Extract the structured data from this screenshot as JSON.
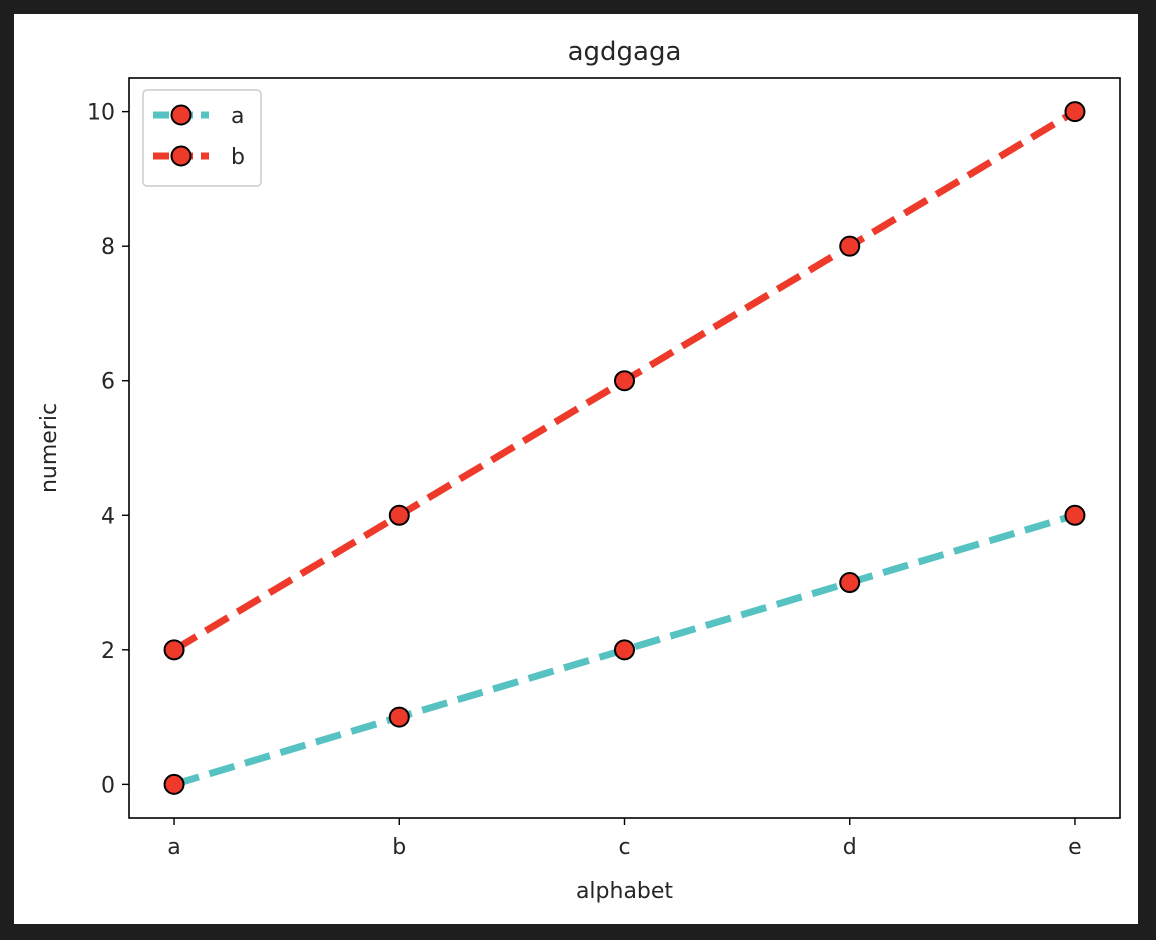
{
  "chart_data": {
    "type": "line",
    "title": "agdgaga",
    "xlabel": "alphabet",
    "ylabel": "numeric",
    "categories": [
      "a",
      "b",
      "c",
      "d",
      "e"
    ],
    "ylim": [
      -0.5,
      10.5
    ],
    "yticks": [
      0,
      2,
      4,
      6,
      8,
      10
    ],
    "grid": false,
    "legend_position": "top-left",
    "marker_face_color": "#ee3a2b",
    "marker_edge_color": "#000000",
    "series": [
      {
        "name": "a",
        "values": [
          0,
          1,
          2,
          3,
          4
        ],
        "color": "#56c2c1",
        "linestyle": "dashed"
      },
      {
        "name": "b",
        "values": [
          2,
          4,
          6,
          8,
          10
        ],
        "color": "#ee3a2b",
        "linestyle": "dashed"
      }
    ]
  }
}
